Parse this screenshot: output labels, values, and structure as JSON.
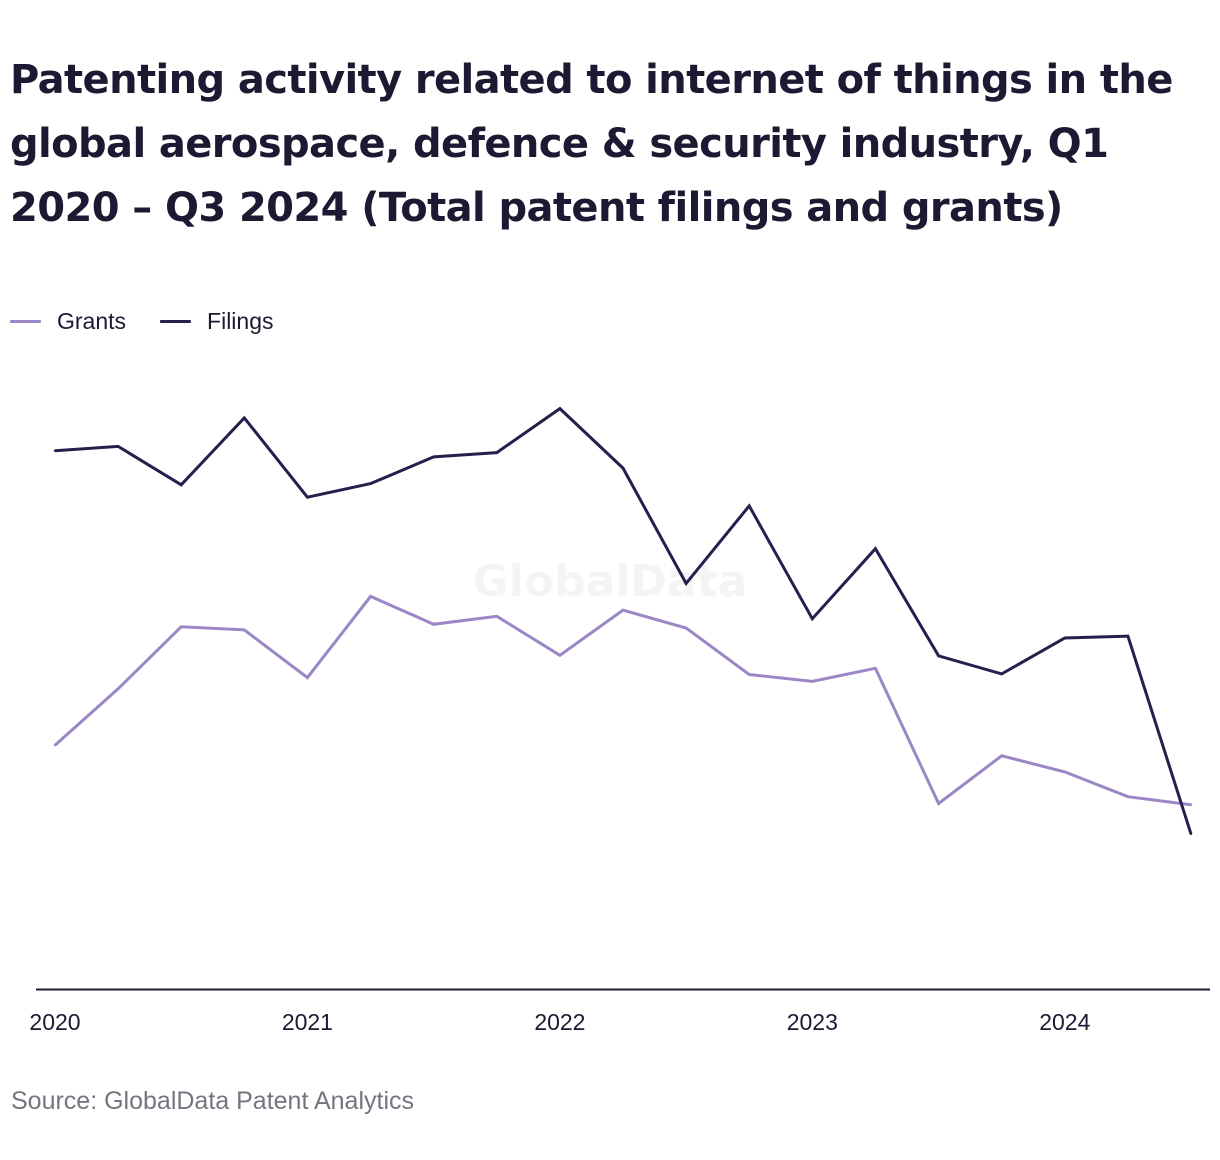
{
  "source": "Source: GlobalData Patent Analytics",
  "watermark": "GlobalData",
  "chart_data": {
    "type": "line",
    "title": "Patenting activity related to internet of things in the global aerospace, defence & security industry, Q1 2020 – Q3 2024 (Total patent filings and grants)",
    "xlabel": "",
    "ylabel": "",
    "x": [
      "Q1 2020",
      "Q2 2020",
      "Q3 2020",
      "Q4 2020",
      "Q1 2021",
      "Q2 2021",
      "Q3 2021",
      "Q4 2021",
      "Q1 2022",
      "Q2 2022",
      "Q3 2022",
      "Q4 2022",
      "Q1 2023",
      "Q2 2023",
      "Q3 2023",
      "Q4 2023",
      "Q1 2024",
      "Q2 2024",
      "Q3 2024"
    ],
    "x_tick_labels": [
      "2020",
      "2021",
      "2022",
      "2023",
      "2024"
    ],
    "y_axis_visible": false,
    "ylim": [
      0,
      100
    ],
    "grid": false,
    "legend_position": "top-left",
    "series": [
      {
        "name": "Grants",
        "color": "#9c87c6",
        "values": [
          39.4,
          48.5,
          58.5,
          58.0,
          50.3,
          63.4,
          58.9,
          60.2,
          53.9,
          61.2,
          58.3,
          50.8,
          49.7,
          51.8,
          30.0,
          37.7,
          35.1,
          31.1,
          29.8
        ]
      },
      {
        "name": "Filings",
        "color": "#2a1d4d",
        "values": [
          86.9,
          87.6,
          81.4,
          92.2,
          79.4,
          81.6,
          85.9,
          86.6,
          93.7,
          84.1,
          65.5,
          78.0,
          59.8,
          71.1,
          53.8,
          50.9,
          56.7,
          57.0,
          25.1
        ]
      }
    ]
  }
}
